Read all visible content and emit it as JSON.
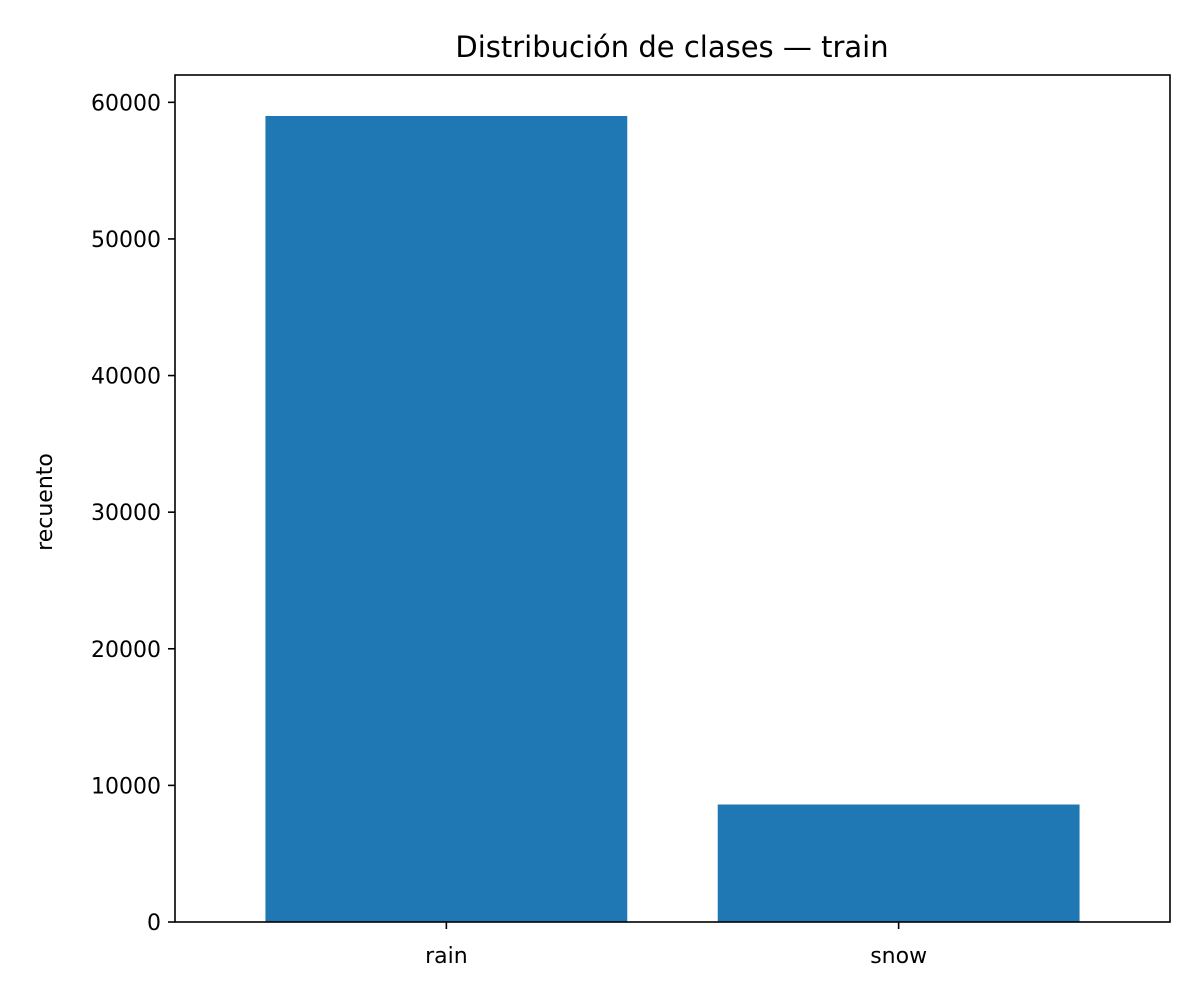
{
  "chart_data": {
    "type": "bar",
    "title": "Distribución de clases — train",
    "xlabel": "",
    "ylabel": "recuento",
    "categories": [
      "rain",
      "snow"
    ],
    "values": [
      59000,
      8600
    ],
    "ylim": [
      0,
      62000
    ],
    "yticks": [
      0,
      10000,
      20000,
      30000,
      40000,
      50000,
      60000
    ],
    "ytick_labels": [
      "0",
      "10000",
      "20000",
      "30000",
      "40000",
      "50000",
      "60000"
    ],
    "grid": false,
    "legend": "none",
    "bar_color": "#1f77b4"
  }
}
